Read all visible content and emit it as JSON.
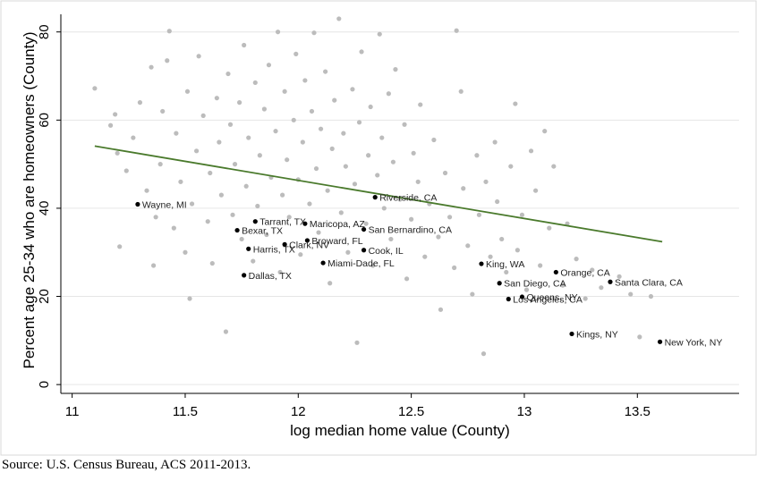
{
  "source_note": "Source: U.S. Census Bureau, ACS 2011-2013.",
  "chart_data": {
    "type": "scatter",
    "title": "",
    "xlabel": "log median home value (County)",
    "ylabel": "Percent age 25-34 who are homeowners (County)",
    "xlim": [
      10.95,
      13.95
    ],
    "ylim": [
      -2,
      84
    ],
    "x_ticks": [
      11,
      11.5,
      12,
      12.5,
      13,
      13.5
    ],
    "x_tick_labels": [
      "11",
      "11.5",
      "12",
      "12.5",
      "13",
      "13.5"
    ],
    "y_ticks": [
      0,
      20,
      40,
      60,
      80
    ],
    "y_tick_labels": [
      "0",
      "20",
      "40",
      "60",
      "80"
    ],
    "grid": "horizontal",
    "colors": {
      "background_points": "#bcbcbc",
      "labeled_points": "#000000",
      "fit_line": "#4a7a2c"
    },
    "fit_line": {
      "x": [
        11.1,
        13.61
      ],
      "y": [
        54.1,
        32.4
      ]
    },
    "labeled_points": [
      {
        "label": "Wayne, MI",
        "x": 11.29,
        "y": 40.9
      },
      {
        "label": "Tarrant, TX",
        "x": 11.81,
        "y": 37.0
      },
      {
        "label": "Maricopa, AZ",
        "x": 12.03,
        "y": 36.5
      },
      {
        "label": "Bexar, TX",
        "x": 11.73,
        "y": 35.0
      },
      {
        "label": "San Bernardino, CA",
        "x": 12.29,
        "y": 35.2
      },
      {
        "label": "Riverside, CA",
        "x": 12.34,
        "y": 42.5
      },
      {
        "label": "Broward, FL",
        "x": 12.04,
        "y": 32.7
      },
      {
        "label": "Clark, NV",
        "x": 11.94,
        "y": 31.8
      },
      {
        "label": "Harris, TX",
        "x": 11.78,
        "y": 30.8
      },
      {
        "label": "Cook, IL",
        "x": 12.29,
        "y": 30.5
      },
      {
        "label": "Miami-Dade, FL",
        "x": 12.11,
        "y": 27.6
      },
      {
        "label": "Dallas, TX",
        "x": 11.76,
        "y": 24.8
      },
      {
        "label": "King, WA",
        "x": 12.81,
        "y": 27.4
      },
      {
        "label": "Orange, CA",
        "x": 13.14,
        "y": 25.5
      },
      {
        "label": "Santa Clara, CA",
        "x": 13.38,
        "y": 23.3
      },
      {
        "label": "San Diego, CA",
        "x": 12.89,
        "y": 23.0
      },
      {
        "label": "Queens, NY",
        "x": 12.99,
        "y": 19.9
      },
      {
        "label": "Los Angeles, CA",
        "x": 12.93,
        "y": 19.4
      },
      {
        "label": "Kings, NY",
        "x": 13.21,
        "y": 11.5
      },
      {
        "label": "New York, NY",
        "x": 13.6,
        "y": 9.7
      }
    ],
    "background_points": [
      {
        "x": 11.1,
        "y": 67.2
      },
      {
        "x": 11.17,
        "y": 58.8
      },
      {
        "x": 11.19,
        "y": 61.3
      },
      {
        "x": 11.2,
        "y": 52.5
      },
      {
        "x": 11.21,
        "y": 31.3
      },
      {
        "x": 11.24,
        "y": 48.5
      },
      {
        "x": 11.27,
        "y": 56.0
      },
      {
        "x": 11.3,
        "y": 64.0
      },
      {
        "x": 11.33,
        "y": 44.0
      },
      {
        "x": 11.35,
        "y": 72.0
      },
      {
        "x": 11.36,
        "y": 27.0
      },
      {
        "x": 11.37,
        "y": 38.0
      },
      {
        "x": 11.39,
        "y": 50.0
      },
      {
        "x": 11.4,
        "y": 62.0
      },
      {
        "x": 11.42,
        "y": 73.5
      },
      {
        "x": 11.43,
        "y": 80.2
      },
      {
        "x": 11.45,
        "y": 35.5
      },
      {
        "x": 11.46,
        "y": 57.0
      },
      {
        "x": 11.48,
        "y": 46.0
      },
      {
        "x": 11.5,
        "y": 30.0
      },
      {
        "x": 11.51,
        "y": 66.5
      },
      {
        "x": 11.52,
        "y": 19.5
      },
      {
        "x": 11.53,
        "y": 41.0
      },
      {
        "x": 11.55,
        "y": 53.0
      },
      {
        "x": 11.56,
        "y": 74.5
      },
      {
        "x": 11.58,
        "y": 61.0
      },
      {
        "x": 11.6,
        "y": 37.0
      },
      {
        "x": 11.61,
        "y": 48.0
      },
      {
        "x": 11.62,
        "y": 27.5
      },
      {
        "x": 11.64,
        "y": 65.0
      },
      {
        "x": 11.65,
        "y": 55.0
      },
      {
        "x": 11.66,
        "y": 43.0
      },
      {
        "x": 11.68,
        "y": 12.0
      },
      {
        "x": 11.69,
        "y": 70.5
      },
      {
        "x": 11.7,
        "y": 59.0
      },
      {
        "x": 11.71,
        "y": 38.5
      },
      {
        "x": 11.72,
        "y": 50.0
      },
      {
        "x": 11.74,
        "y": 64.0
      },
      {
        "x": 11.75,
        "y": 33.0
      },
      {
        "x": 11.76,
        "y": 77.0
      },
      {
        "x": 11.77,
        "y": 45.0
      },
      {
        "x": 11.78,
        "y": 56.0
      },
      {
        "x": 11.8,
        "y": 28.0
      },
      {
        "x": 11.81,
        "y": 68.5
      },
      {
        "x": 11.82,
        "y": 40.5
      },
      {
        "x": 11.83,
        "y": 52.0
      },
      {
        "x": 11.85,
        "y": 62.5
      },
      {
        "x": 11.86,
        "y": 34.0
      },
      {
        "x": 11.87,
        "y": 72.5
      },
      {
        "x": 11.88,
        "y": 47.0
      },
      {
        "x": 11.9,
        "y": 57.5
      },
      {
        "x": 11.91,
        "y": 80.0
      },
      {
        "x": 11.92,
        "y": 25.5
      },
      {
        "x": 11.93,
        "y": 43.0
      },
      {
        "x": 11.94,
        "y": 66.5
      },
      {
        "x": 11.95,
        "y": 51.0
      },
      {
        "x": 11.96,
        "y": 38.0
      },
      {
        "x": 11.98,
        "y": 60.0
      },
      {
        "x": 11.99,
        "y": 75.0
      },
      {
        "x": 12.0,
        "y": 46.5
      },
      {
        "x": 12.01,
        "y": 29.5
      },
      {
        "x": 12.02,
        "y": 55.0
      },
      {
        "x": 12.03,
        "y": 69.0
      },
      {
        "x": 12.05,
        "y": 41.0
      },
      {
        "x": 12.06,
        "y": 62.0
      },
      {
        "x": 12.07,
        "y": 79.8
      },
      {
        "x": 12.08,
        "y": 49.0
      },
      {
        "x": 12.09,
        "y": 34.5
      },
      {
        "x": 12.1,
        "y": 58.0
      },
      {
        "x": 12.12,
        "y": 71.0
      },
      {
        "x": 12.13,
        "y": 44.0
      },
      {
        "x": 12.14,
        "y": 23.0
      },
      {
        "x": 12.15,
        "y": 53.5
      },
      {
        "x": 12.16,
        "y": 64.5
      },
      {
        "x": 12.18,
        "y": 83.0
      },
      {
        "x": 12.19,
        "y": 39.0
      },
      {
        "x": 12.2,
        "y": 57.0
      },
      {
        "x": 12.21,
        "y": 49.5
      },
      {
        "x": 12.22,
        "y": 30.0
      },
      {
        "x": 12.24,
        "y": 67.0
      },
      {
        "x": 12.25,
        "y": 45.5
      },
      {
        "x": 12.26,
        "y": 9.5
      },
      {
        "x": 12.27,
        "y": 59.5
      },
      {
        "x": 12.28,
        "y": 75.5
      },
      {
        "x": 12.3,
        "y": 36.5
      },
      {
        "x": 12.31,
        "y": 52.0
      },
      {
        "x": 12.32,
        "y": 63.0
      },
      {
        "x": 12.33,
        "y": 27.0
      },
      {
        "x": 12.35,
        "y": 47.5
      },
      {
        "x": 12.36,
        "y": 79.5
      },
      {
        "x": 12.37,
        "y": 56.0
      },
      {
        "x": 12.38,
        "y": 40.0
      },
      {
        "x": 12.4,
        "y": 66.0
      },
      {
        "x": 12.41,
        "y": 33.0
      },
      {
        "x": 12.42,
        "y": 50.5
      },
      {
        "x": 12.43,
        "y": 71.5
      },
      {
        "x": 12.45,
        "y": 42.0
      },
      {
        "x": 12.47,
        "y": 59.0
      },
      {
        "x": 12.48,
        "y": 24.0
      },
      {
        "x": 12.5,
        "y": 37.5
      },
      {
        "x": 12.51,
        "y": 52.5
      },
      {
        "x": 12.53,
        "y": 46.0
      },
      {
        "x": 12.54,
        "y": 63.5
      },
      {
        "x": 12.56,
        "y": 29.0
      },
      {
        "x": 12.58,
        "y": 41.0
      },
      {
        "x": 12.6,
        "y": 55.5
      },
      {
        "x": 12.62,
        "y": 33.5
      },
      {
        "x": 12.63,
        "y": 17.0
      },
      {
        "x": 12.65,
        "y": 48.0
      },
      {
        "x": 12.67,
        "y": 38.0
      },
      {
        "x": 12.69,
        "y": 26.5
      },
      {
        "x": 12.7,
        "y": 80.3
      },
      {
        "x": 12.72,
        "y": 66.5
      },
      {
        "x": 12.73,
        "y": 44.5
      },
      {
        "x": 12.75,
        "y": 31.5
      },
      {
        "x": 12.77,
        "y": 20.5
      },
      {
        "x": 12.79,
        "y": 52.0
      },
      {
        "x": 12.8,
        "y": 38.5
      },
      {
        "x": 12.82,
        "y": 7.0
      },
      {
        "x": 12.83,
        "y": 46.0
      },
      {
        "x": 12.85,
        "y": 29.0
      },
      {
        "x": 12.87,
        "y": 55.0
      },
      {
        "x": 12.88,
        "y": 41.5
      },
      {
        "x": 12.9,
        "y": 33.0
      },
      {
        "x": 12.92,
        "y": 25.5
      },
      {
        "x": 12.94,
        "y": 49.5
      },
      {
        "x": 12.96,
        "y": 63.7
      },
      {
        "x": 12.97,
        "y": 30.5
      },
      {
        "x": 12.99,
        "y": 38.5
      },
      {
        "x": 13.01,
        "y": 21.5
      },
      {
        "x": 13.03,
        "y": 53.0
      },
      {
        "x": 13.05,
        "y": 44.0
      },
      {
        "x": 13.07,
        "y": 27.0
      },
      {
        "x": 13.09,
        "y": 57.5
      },
      {
        "x": 13.11,
        "y": 35.5
      },
      {
        "x": 13.13,
        "y": 49.5
      },
      {
        "x": 13.17,
        "y": 22.5
      },
      {
        "x": 13.19,
        "y": 36.5
      },
      {
        "x": 13.23,
        "y": 28.5
      },
      {
        "x": 13.27,
        "y": 19.5
      },
      {
        "x": 13.3,
        "y": 26.0
      },
      {
        "x": 13.34,
        "y": 22.0
      },
      {
        "x": 13.42,
        "y": 24.5
      },
      {
        "x": 13.47,
        "y": 20.5
      },
      {
        "x": 13.51,
        "y": 10.8
      },
      {
        "x": 13.56,
        "y": 20.0
      }
    ]
  }
}
